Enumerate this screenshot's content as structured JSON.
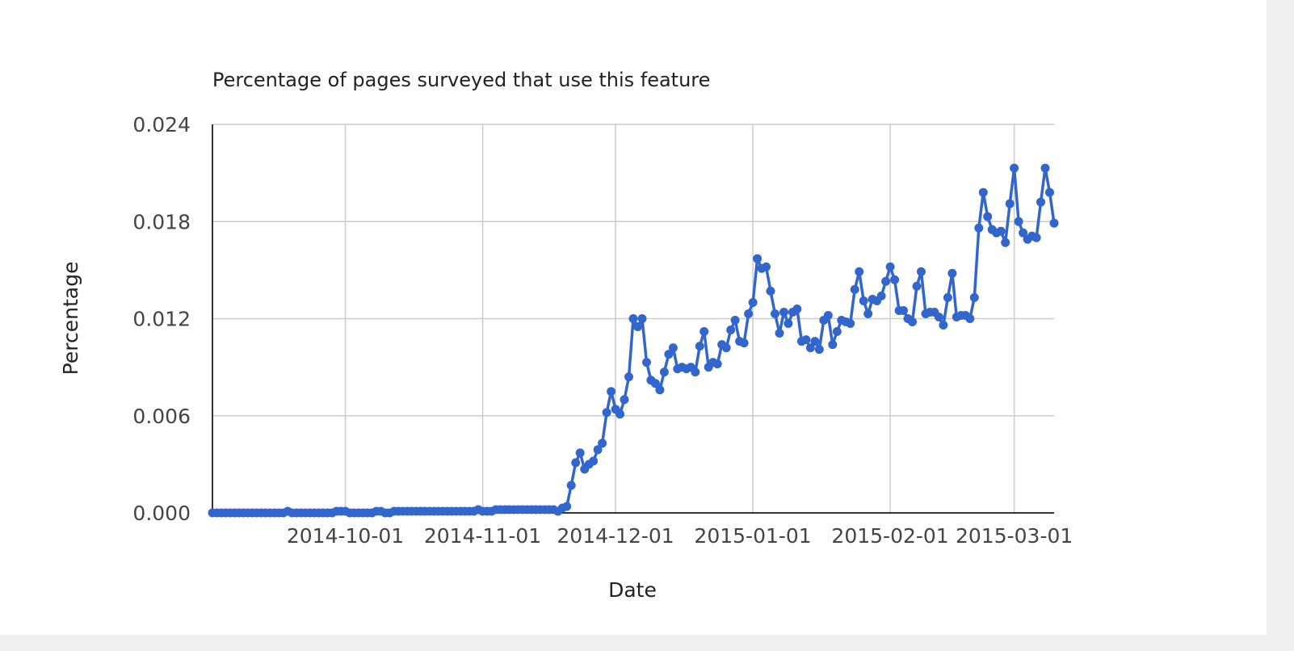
{
  "chart_data": {
    "type": "line",
    "title": "Percentage of pages surveyed that use this feature",
    "xlabel": "Date",
    "ylabel": "Percentage",
    "ylim": [
      0,
      0.024
    ],
    "yticks": [
      "0.000",
      "0.006",
      "0.012",
      "0.018",
      "0.024"
    ],
    "xlim": [
      "2014-09-01",
      "2015-03-10"
    ],
    "xticks": [
      "2014-10-01",
      "2014-11-01",
      "2014-12-01",
      "2015-01-01",
      "2015-02-01",
      "2015-03-01"
    ],
    "grid": true,
    "legend": "none",
    "line_color": "#3366cc",
    "series": [
      {
        "points": [
          [
            "2014-09-01",
            0.0
          ],
          [
            "2014-09-02",
            0.0
          ],
          [
            "2014-09-03",
            0.0
          ],
          [
            "2014-09-04",
            0.0
          ],
          [
            "2014-09-05",
            0.0
          ],
          [
            "2014-09-06",
            0.0
          ],
          [
            "2014-09-07",
            0.0
          ],
          [
            "2014-09-08",
            0.0
          ],
          [
            "2014-09-09",
            0.0
          ],
          [
            "2014-09-10",
            0.0
          ],
          [
            "2014-09-11",
            0.0
          ],
          [
            "2014-09-12",
            0.0
          ],
          [
            "2014-09-13",
            0.0
          ],
          [
            "2014-09-14",
            0.0
          ],
          [
            "2014-09-15",
            0.0
          ],
          [
            "2014-09-16",
            0.0
          ],
          [
            "2014-09-17",
            0.0
          ],
          [
            "2014-09-18",
            0.0001
          ],
          [
            "2014-09-19",
            0.0
          ],
          [
            "2014-09-20",
            0.0
          ],
          [
            "2014-09-21",
            0.0
          ],
          [
            "2014-09-22",
            0.0
          ],
          [
            "2014-09-23",
            0.0
          ],
          [
            "2014-09-24",
            0.0
          ],
          [
            "2014-09-25",
            0.0
          ],
          [
            "2014-09-26",
            0.0
          ],
          [
            "2014-09-27",
            0.0
          ],
          [
            "2014-09-28",
            0.0
          ],
          [
            "2014-09-29",
            0.0001
          ],
          [
            "2014-09-30",
            0.0001
          ],
          [
            "2014-10-01",
            0.0001
          ],
          [
            "2014-10-02",
            0.0
          ],
          [
            "2014-10-03",
            0.0
          ],
          [
            "2014-10-04",
            0.0
          ],
          [
            "2014-10-05",
            0.0
          ],
          [
            "2014-10-06",
            0.0
          ],
          [
            "2014-10-07",
            0.0
          ],
          [
            "2014-10-08",
            0.0001
          ],
          [
            "2014-10-09",
            0.0001
          ],
          [
            "2014-10-10",
            0.0
          ],
          [
            "2014-10-11",
            0.0
          ],
          [
            "2014-10-12",
            0.0001
          ],
          [
            "2014-10-13",
            0.0001
          ],
          [
            "2014-10-14",
            0.0001
          ],
          [
            "2014-10-15",
            0.0001
          ],
          [
            "2014-10-16",
            0.0001
          ],
          [
            "2014-10-17",
            0.0001
          ],
          [
            "2014-10-18",
            0.0001
          ],
          [
            "2014-10-19",
            0.0001
          ],
          [
            "2014-10-20",
            0.0001
          ],
          [
            "2014-10-21",
            0.0001
          ],
          [
            "2014-10-22",
            0.0001
          ],
          [
            "2014-10-23",
            0.0001
          ],
          [
            "2014-10-24",
            0.0001
          ],
          [
            "2014-10-25",
            0.0001
          ],
          [
            "2014-10-26",
            0.0001
          ],
          [
            "2014-10-27",
            0.0001
          ],
          [
            "2014-10-28",
            0.0001
          ],
          [
            "2014-10-29",
            0.0001
          ],
          [
            "2014-10-30",
            0.0001
          ],
          [
            "2014-10-31",
            0.0002
          ],
          [
            "2014-11-01",
            0.0001
          ],
          [
            "2014-11-02",
            0.0001
          ],
          [
            "2014-11-03",
            0.0001
          ],
          [
            "2014-11-04",
            0.0002
          ],
          [
            "2014-11-05",
            0.0002
          ],
          [
            "2014-11-06",
            0.0002
          ],
          [
            "2014-11-07",
            0.0002
          ],
          [
            "2014-11-08",
            0.0002
          ],
          [
            "2014-11-09",
            0.0002
          ],
          [
            "2014-11-10",
            0.0002
          ],
          [
            "2014-11-11",
            0.0002
          ],
          [
            "2014-11-12",
            0.0002
          ],
          [
            "2014-11-13",
            0.0002
          ],
          [
            "2014-11-14",
            0.0002
          ],
          [
            "2014-11-15",
            0.0002
          ],
          [
            "2014-11-16",
            0.0002
          ],
          [
            "2014-11-17",
            0.0002
          ],
          [
            "2014-11-18",
            0.0001
          ],
          [
            "2014-11-19",
            0.0003
          ],
          [
            "2014-11-20",
            0.0004
          ],
          [
            "2014-11-21",
            0.0017
          ],
          [
            "2014-11-22",
            0.0031
          ],
          [
            "2014-11-23",
            0.0037
          ],
          [
            "2014-11-24",
            0.0027
          ],
          [
            "2014-11-25",
            0.003
          ],
          [
            "2014-11-26",
            0.0032
          ],
          [
            "2014-11-27",
            0.0039
          ],
          [
            "2014-11-28",
            0.0043
          ],
          [
            "2014-11-29",
            0.0062
          ],
          [
            "2014-11-30",
            0.0075
          ],
          [
            "2014-12-01",
            0.0064
          ],
          [
            "2014-12-02",
            0.0061
          ],
          [
            "2014-12-03",
            0.007
          ],
          [
            "2014-12-04",
            0.0084
          ],
          [
            "2014-12-05",
            0.012
          ],
          [
            "2014-12-06",
            0.0115
          ],
          [
            "2014-12-07",
            0.012
          ],
          [
            "2014-12-08",
            0.0093
          ],
          [
            "2014-12-09",
            0.0082
          ],
          [
            "2014-12-10",
            0.008
          ],
          [
            "2014-12-11",
            0.0076
          ],
          [
            "2014-12-12",
            0.0087
          ],
          [
            "2014-12-13",
            0.0098
          ],
          [
            "2014-12-14",
            0.0102
          ],
          [
            "2014-12-15",
            0.0089
          ],
          [
            "2014-12-16",
            0.009
          ],
          [
            "2014-12-17",
            0.0089
          ],
          [
            "2014-12-18",
            0.009
          ],
          [
            "2014-12-19",
            0.0087
          ],
          [
            "2014-12-20",
            0.0103
          ],
          [
            "2014-12-21",
            0.0112
          ],
          [
            "2014-12-22",
            0.009
          ],
          [
            "2014-12-23",
            0.0093
          ],
          [
            "2014-12-24",
            0.0092
          ],
          [
            "2014-12-25",
            0.0104
          ],
          [
            "2014-12-26",
            0.0102
          ],
          [
            "2014-12-27",
            0.0113
          ],
          [
            "2014-12-28",
            0.0119
          ],
          [
            "2014-12-29",
            0.0106
          ],
          [
            "2014-12-30",
            0.0105
          ],
          [
            "2014-12-31",
            0.0123
          ],
          [
            "2015-01-01",
            0.013
          ],
          [
            "2015-01-02",
            0.0157
          ],
          [
            "2015-01-03",
            0.0151
          ],
          [
            "2015-01-04",
            0.0152
          ],
          [
            "2015-01-05",
            0.0137
          ],
          [
            "2015-01-06",
            0.0123
          ],
          [
            "2015-01-07",
            0.0111
          ],
          [
            "2015-01-08",
            0.0124
          ],
          [
            "2015-01-09",
            0.0117
          ],
          [
            "2015-01-10",
            0.0124
          ],
          [
            "2015-01-11",
            0.0126
          ],
          [
            "2015-01-12",
            0.0106
          ],
          [
            "2015-01-13",
            0.0107
          ],
          [
            "2015-01-14",
            0.0102
          ],
          [
            "2015-01-15",
            0.0106
          ],
          [
            "2015-01-16",
            0.0101
          ],
          [
            "2015-01-17",
            0.0119
          ],
          [
            "2015-01-18",
            0.0122
          ],
          [
            "2015-01-19",
            0.0104
          ],
          [
            "2015-01-20",
            0.0112
          ],
          [
            "2015-01-21",
            0.0119
          ],
          [
            "2015-01-22",
            0.0118
          ],
          [
            "2015-01-23",
            0.0117
          ],
          [
            "2015-01-24",
            0.0138
          ],
          [
            "2015-01-25",
            0.0149
          ],
          [
            "2015-01-26",
            0.0131
          ],
          [
            "2015-01-27",
            0.0123
          ],
          [
            "2015-01-28",
            0.0132
          ],
          [
            "2015-01-29",
            0.0131
          ],
          [
            "2015-01-30",
            0.0134
          ],
          [
            "2015-01-31",
            0.0143
          ],
          [
            "2015-02-01",
            0.0152
          ],
          [
            "2015-02-02",
            0.0144
          ],
          [
            "2015-02-03",
            0.0125
          ],
          [
            "2015-02-04",
            0.0125
          ],
          [
            "2015-02-05",
            0.012
          ],
          [
            "2015-02-06",
            0.0118
          ],
          [
            "2015-02-07",
            0.014
          ],
          [
            "2015-02-08",
            0.0149
          ],
          [
            "2015-02-09",
            0.0123
          ],
          [
            "2015-02-10",
            0.0124
          ],
          [
            "2015-02-11",
            0.0124
          ],
          [
            "2015-02-12",
            0.0121
          ],
          [
            "2015-02-13",
            0.0116
          ],
          [
            "2015-02-14",
            0.0133
          ],
          [
            "2015-02-15",
            0.0148
          ],
          [
            "2015-02-16",
            0.0121
          ],
          [
            "2015-02-17",
            0.0122
          ],
          [
            "2015-02-18",
            0.0122
          ],
          [
            "2015-02-19",
            0.012
          ],
          [
            "2015-02-20",
            0.0133
          ],
          [
            "2015-02-21",
            0.0176
          ],
          [
            "2015-02-22",
            0.0198
          ],
          [
            "2015-02-23",
            0.0183
          ],
          [
            "2015-02-24",
            0.0175
          ],
          [
            "2015-02-25",
            0.0173
          ],
          [
            "2015-02-26",
            0.0174
          ],
          [
            "2015-02-27",
            0.0167
          ],
          [
            "2015-02-28",
            0.0191
          ],
          [
            "2015-03-01",
            0.0213
          ],
          [
            "2015-03-02",
            0.018
          ],
          [
            "2015-03-03",
            0.0173
          ],
          [
            "2015-03-04",
            0.0169
          ],
          [
            "2015-03-05",
            0.0171
          ],
          [
            "2015-03-06",
            0.017
          ],
          [
            "2015-03-07",
            0.0192
          ],
          [
            "2015-03-08",
            0.0213
          ],
          [
            "2015-03-09",
            0.0198
          ],
          [
            "2015-03-10",
            0.0179
          ]
        ]
      }
    ]
  }
}
